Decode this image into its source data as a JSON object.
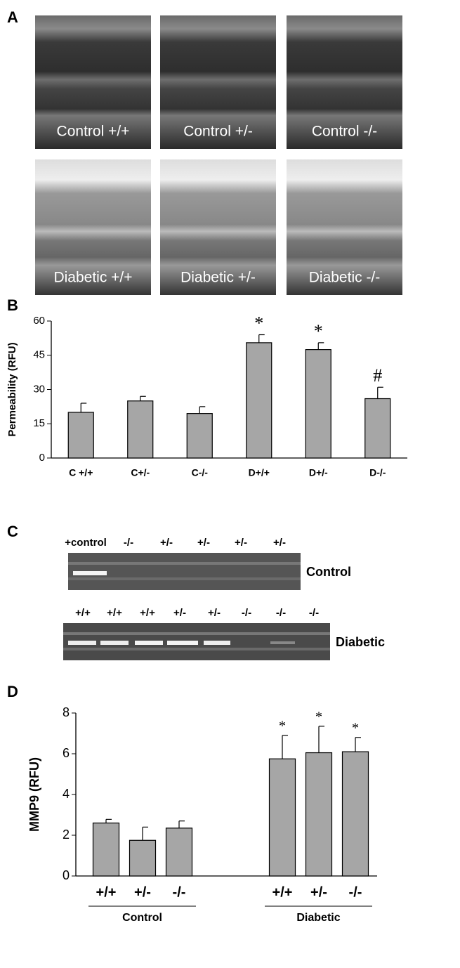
{
  "panel_labels": [
    "A",
    "B",
    "C",
    "D"
  ],
  "micrographs": [
    "Control +/+",
    "Control +/-",
    "Control -/-",
    "Diabetic +/+",
    "Diabetic +/-",
    "Diabetic -/-"
  ],
  "gel": {
    "control_lanes": [
      "+control",
      "-/-",
      "+/-",
      "+/-",
      "+/-",
      "+/-"
    ],
    "control_label": "Control",
    "diabetic_lanes": [
      "+/+",
      "+/+",
      "+/+",
      "+/-",
      "+/-",
      "-/-",
      "-/-",
      "-/-"
    ],
    "diabetic_label": "Diabetic"
  },
  "chart_data": [
    {
      "type": "bar",
      "y_label": "Permeability (RFU)",
      "categories": [
        "C +/+",
        "C+/-",
        "C-/-",
        "D+/+",
        "D+/-",
        "D-/-"
      ],
      "values": [
        20,
        25,
        19.5,
        50.5,
        47.5,
        26
      ],
      "errors": [
        4,
        2,
        3,
        3.5,
        3,
        5
      ],
      "annotations": [
        null,
        null,
        null,
        "*",
        "*",
        "#"
      ],
      "color": "#a6a6a6",
      "ylim": [
        0,
        60
      ],
      "yticks": [
        0,
        15,
        30,
        45,
        60
      ]
    },
    {
      "type": "bar",
      "y_label": "MMP9 (RFU)",
      "categories": [
        "+/+",
        "+/-",
        "-/-",
        "+/+",
        "+/-",
        "-/-"
      ],
      "groups": [
        "Control",
        "Diabetic"
      ],
      "values": [
        2.6,
        1.75,
        2.35,
        5.75,
        6.05,
        6.1
      ],
      "errors": [
        0.18,
        0.65,
        0.35,
        1.15,
        1.3,
        0.7
      ],
      "annotations": [
        null,
        null,
        null,
        "*",
        "*",
        "*"
      ],
      "color": "#a6a6a6",
      "ylim": [
        0,
        8
      ],
      "yticks": [
        0,
        2,
        4,
        6,
        8
      ]
    }
  ]
}
